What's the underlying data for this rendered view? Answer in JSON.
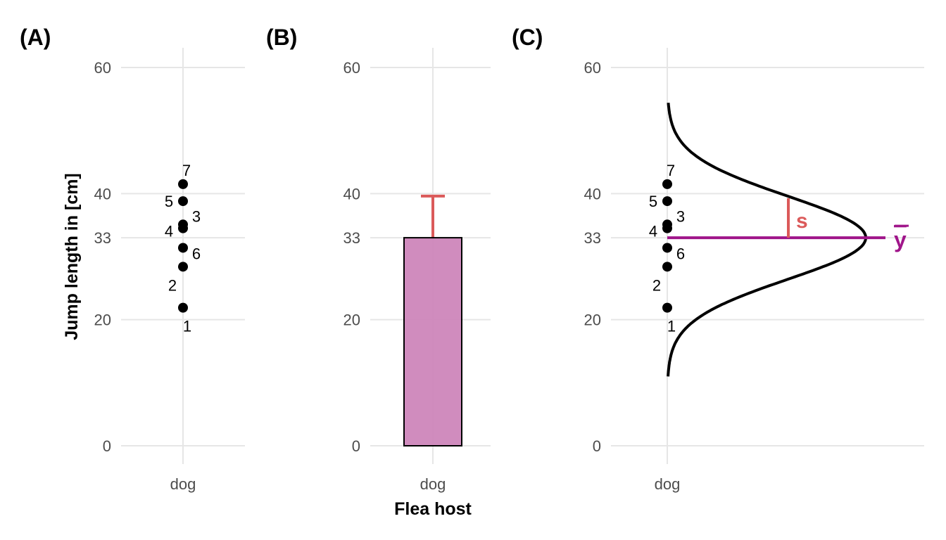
{
  "chart_data": [
    {
      "panel": "(A)",
      "type": "scatter",
      "categories": [
        "dog"
      ],
      "ylabel": "Jump length in [cm]",
      "yticks": [
        0,
        20,
        33,
        40,
        60
      ],
      "ylim": [
        0,
        60
      ],
      "grid": true,
      "points": [
        {
          "label": "1",
          "y": 21.9
        },
        {
          "label": "2",
          "y": 28.4
        },
        {
          "label": "3",
          "y": 35.1
        },
        {
          "label": "4",
          "y": 34.5
        },
        {
          "label": "5",
          "y": 38.8
        },
        {
          "label": "6",
          "y": 31.4
        },
        {
          "label": "7",
          "y": 41.5
        }
      ]
    },
    {
      "panel": "(B)",
      "type": "bar",
      "categories": [
        "dog"
      ],
      "values": [
        33.0
      ],
      "error_sd": 6.6,
      "xlabel": "Flea host",
      "yticks": [
        0,
        20,
        33,
        40,
        60
      ],
      "ylim": [
        0,
        60
      ],
      "grid": true,
      "bar_color": "#cd86bb",
      "error_color": "#db5a5a"
    },
    {
      "panel": "(C)",
      "type": "scatter",
      "categories": [
        "dog"
      ],
      "yticks": [
        0,
        20,
        33,
        40,
        60
      ],
      "ylim": [
        0,
        60
      ],
      "grid": true,
      "mean": 33.0,
      "sd": 6.6,
      "mean_label": "y",
      "sd_label": "s",
      "mean_color": "#a0158a",
      "sd_color": "#db5a5a",
      "points": [
        {
          "label": "1",
          "y": 21.9
        },
        {
          "label": "2",
          "y": 28.4
        },
        {
          "label": "3",
          "y": 35.1
        },
        {
          "label": "4",
          "y": 34.5
        },
        {
          "label": "5",
          "y": 38.8
        },
        {
          "label": "6",
          "y": 31.4
        },
        {
          "label": "7",
          "y": 41.5
        }
      ]
    }
  ]
}
